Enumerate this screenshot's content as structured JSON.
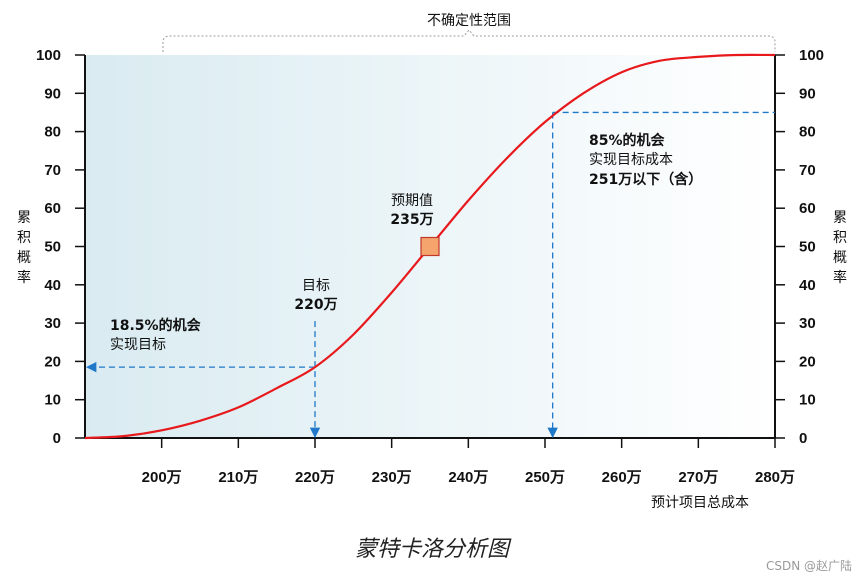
{
  "chart_data": {
    "type": "line",
    "title": "蒙特卡洛分析图",
    "top_label": "不确定性范围",
    "xlabel": "预计项目总成本",
    "ylabel_left": "累积概率",
    "ylabel_right": "累积概率",
    "x_unit": "万",
    "xlim": [
      190,
      280
    ],
    "ylim": [
      0,
      100
    ],
    "x_ticks": [
      200,
      210,
      220,
      230,
      240,
      250,
      260,
      270,
      280
    ],
    "x_tick_labels": [
      "200万",
      "210万",
      "220万",
      "230万",
      "240万",
      "250万",
      "260万",
      "270万",
      "280万"
    ],
    "y_ticks": [
      0,
      10,
      20,
      30,
      40,
      50,
      60,
      70,
      80,
      90,
      100
    ],
    "y_tick_labels": [
      "0",
      "10",
      "20",
      "30",
      "40",
      "50",
      "60",
      "70",
      "80",
      "90",
      "100"
    ],
    "series": [
      {
        "color": "#e8191c",
        "x": [
          190,
          195,
          200,
          205,
          210,
          215,
          220,
          225,
          230,
          235,
          240,
          245,
          250,
          255,
          260,
          265,
          270,
          275,
          280
        ],
        "y": [
          0,
          0.5,
          2,
          4.5,
          8,
          13,
          18.5,
          27,
          38,
          50,
          62,
          73,
          82.5,
          90,
          95.5,
          98.5,
          99.5,
          100,
          100
        ]
      }
    ],
    "markers": [
      {
        "name": "expected",
        "x": 235,
        "y": 50,
        "color": "#f4a46c"
      }
    ],
    "reference_lines": [
      {
        "x": 220,
        "y": 18.5,
        "color": "#1f78c8"
      },
      {
        "x": 251,
        "y": 85,
        "color": "#1f78c8"
      }
    ],
    "annotations": {
      "expected": [
        "预期值",
        "235万"
      ],
      "target": [
        "目标",
        "220万"
      ],
      "chance_18": [
        "18.5%的机会",
        "实现目标"
      ],
      "chance_85": [
        "85%的机会",
        "实现目标成本",
        "251万以下（含）"
      ]
    },
    "grid": false,
    "background_gradient": [
      "#d9ebf1",
      "#ffffff"
    ]
  },
  "watermark": "CSDN @赵广陆"
}
